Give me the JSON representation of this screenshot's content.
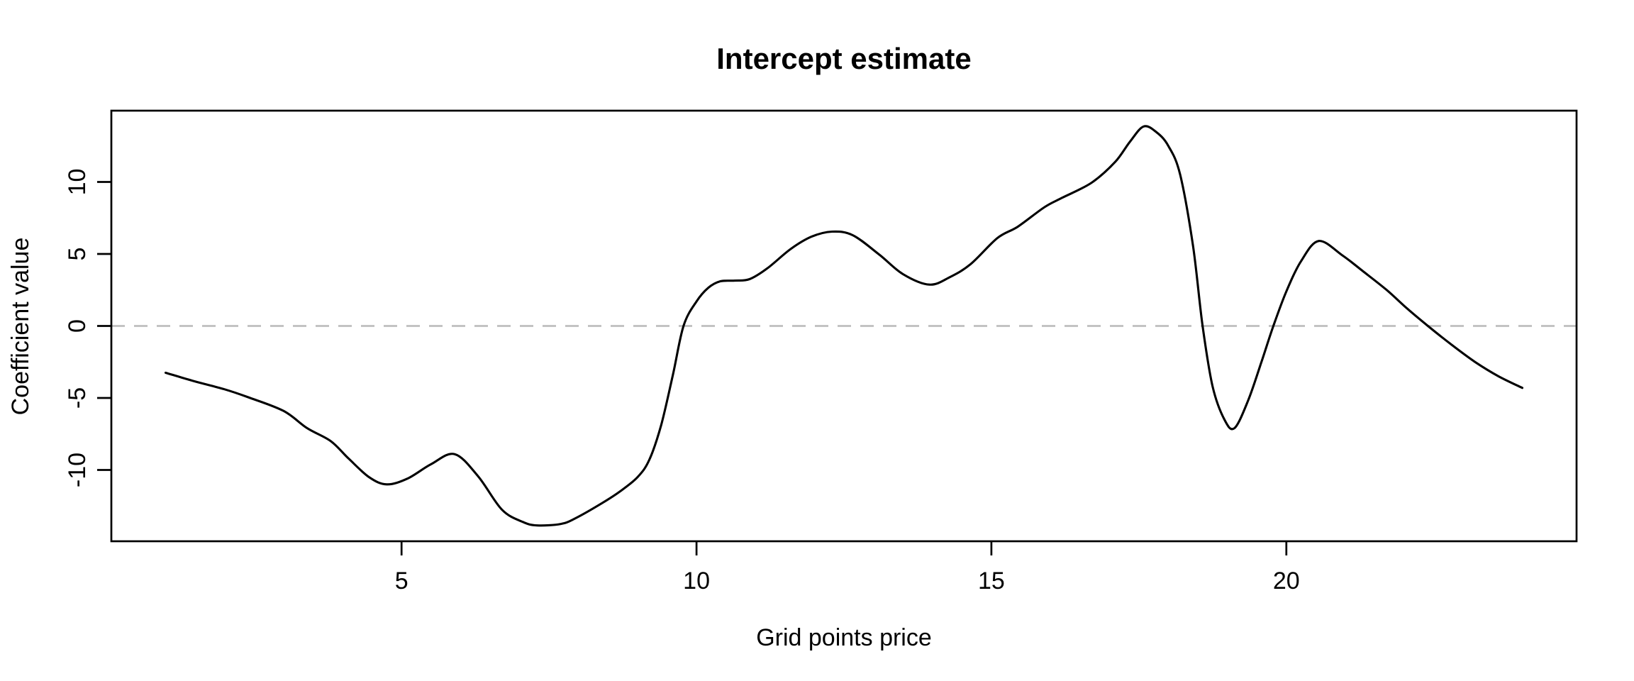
{
  "chart_data": {
    "type": "line",
    "title": "Intercept estimate",
    "xlabel": "Grid points price",
    "ylabel": "Coefficient value",
    "x_ticks": [
      5,
      10,
      15,
      20
    ],
    "y_ticks": [
      -10,
      -5,
      0,
      5,
      10
    ],
    "xlim": [
      0.08,
      24.92
    ],
    "ylim": [
      -14.95,
      14.95
    ],
    "grid": false,
    "legend": "none",
    "background_color": "#ffffff",
    "axis_color": "#000000",
    "reference_line": {
      "y": 0,
      "style": "dashed",
      "color": "#bfbfbf"
    },
    "series": [
      {
        "name": "Intercept estimate",
        "type": "spline",
        "color": "#000000",
        "points": [
          [
            1.0,
            -3.25
          ],
          [
            1.5,
            -3.85
          ],
          [
            2.0,
            -4.4
          ],
          [
            2.4,
            -4.95
          ],
          [
            3.0,
            -5.9
          ],
          [
            3.4,
            -7.1
          ],
          [
            3.8,
            -8.0
          ],
          [
            4.1,
            -9.2
          ],
          [
            4.45,
            -10.5
          ],
          [
            4.75,
            -11.0
          ],
          [
            5.1,
            -10.6
          ],
          [
            5.5,
            -9.6
          ],
          [
            5.9,
            -8.9
          ],
          [
            6.3,
            -10.45
          ],
          [
            6.7,
            -12.75
          ],
          [
            7.05,
            -13.6
          ],
          [
            7.3,
            -13.85
          ],
          [
            7.7,
            -13.75
          ],
          [
            7.95,
            -13.35
          ],
          [
            8.4,
            -12.3
          ],
          [
            8.7,
            -11.5
          ],
          [
            9.0,
            -10.5
          ],
          [
            9.2,
            -9.3
          ],
          [
            9.4,
            -6.9
          ],
          [
            9.6,
            -3.4
          ],
          [
            9.78,
            0.0
          ],
          [
            10.0,
            1.7
          ],
          [
            10.2,
            2.65
          ],
          [
            10.4,
            3.1
          ],
          [
            10.65,
            3.15
          ],
          [
            10.9,
            3.25
          ],
          [
            11.2,
            4.0
          ],
          [
            11.6,
            5.35
          ],
          [
            11.95,
            6.2
          ],
          [
            12.3,
            6.55
          ],
          [
            12.65,
            6.3
          ],
          [
            13.1,
            4.95
          ],
          [
            13.5,
            3.6
          ],
          [
            13.95,
            2.87
          ],
          [
            14.3,
            3.4
          ],
          [
            14.65,
            4.3
          ],
          [
            15.1,
            6.1
          ],
          [
            15.45,
            6.9
          ],
          [
            15.9,
            8.25
          ],
          [
            16.2,
            8.9
          ],
          [
            16.7,
            9.95
          ],
          [
            17.1,
            11.4
          ],
          [
            17.35,
            12.8
          ],
          [
            17.58,
            13.85
          ],
          [
            17.8,
            13.45
          ],
          [
            18.0,
            12.5
          ],
          [
            18.2,
            10.5
          ],
          [
            18.42,
            5.5
          ],
          [
            18.58,
            0.0
          ],
          [
            18.75,
            -4.2
          ],
          [
            18.95,
            -6.5
          ],
          [
            19.12,
            -7.1
          ],
          [
            19.35,
            -5.2
          ],
          [
            19.57,
            -2.6
          ],
          [
            19.78,
            0.0
          ],
          [
            20.0,
            2.4
          ],
          [
            20.25,
            4.5
          ],
          [
            20.55,
            5.9
          ],
          [
            20.95,
            4.9
          ],
          [
            21.3,
            3.8
          ],
          [
            21.7,
            2.5
          ],
          [
            22.05,
            1.2
          ],
          [
            22.4,
            0.0
          ],
          [
            22.8,
            -1.3
          ],
          [
            23.2,
            -2.5
          ],
          [
            23.6,
            -3.5
          ],
          [
            24.0,
            -4.3
          ]
        ]
      }
    ]
  }
}
